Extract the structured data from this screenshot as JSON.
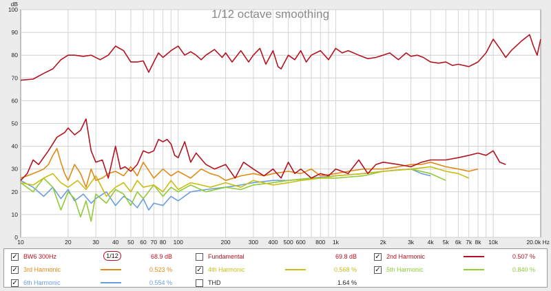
{
  "chart_data": {
    "type": "line",
    "title": "1/12 octave smoothing",
    "ylabel": "dB",
    "xscale": "log",
    "xlim": [
      10,
      20000
    ],
    "ylim": [
      0,
      100
    ],
    "yticks": [
      0,
      10,
      20,
      30,
      40,
      50,
      60,
      70,
      80,
      90,
      100
    ],
    "xticks": [
      {
        "v": 10,
        "label": "10"
      },
      {
        "v": 20,
        "label": "20"
      },
      {
        "v": 30,
        "label": "30"
      },
      {
        "v": 40,
        "label": "40"
      },
      {
        "v": 50,
        "label": "50"
      },
      {
        "v": 60,
        "label": "60"
      },
      {
        "v": 70,
        "label": "70"
      },
      {
        "v": 80,
        "label": "80"
      },
      {
        "v": 100,
        "label": "100"
      },
      {
        "v": 200,
        "label": "200"
      },
      {
        "v": 300,
        "label": "300"
      },
      {
        "v": 400,
        "label": "400"
      },
      {
        "v": 500,
        "label": "500"
      },
      {
        "v": 600,
        "label": "600"
      },
      {
        "v": 800,
        "label": "800"
      },
      {
        "v": 1000,
        "label": "1k"
      },
      {
        "v": 2000,
        "label": "2k"
      },
      {
        "v": 3000,
        "label": "3k"
      },
      {
        "v": 4000,
        "label": "4k"
      },
      {
        "v": 5000,
        "label": "5k"
      },
      {
        "v": 6000,
        "label": "6k"
      },
      {
        "v": 7000,
        "label": "7k"
      },
      {
        "v": 8000,
        "label": "8k"
      },
      {
        "v": 10000,
        "label": "10k"
      },
      {
        "v": 20000,
        "label": "20.0k Hz"
      }
    ],
    "grid": true,
    "series": [
      {
        "name": "BW6 300Hz",
        "color": "#b3121f",
        "x": [
          10,
          12,
          14,
          16,
          18,
          20,
          22,
          25,
          28,
          32,
          36,
          40,
          45,
          50,
          55,
          60,
          65,
          70,
          75,
          80,
          90,
          100,
          110,
          120,
          130,
          140,
          150,
          170,
          190,
          200,
          220,
          250,
          280,
          300,
          330,
          360,
          400,
          430,
          450,
          500,
          550,
          600,
          650,
          700,
          800,
          900,
          1000,
          1100,
          1200,
          1400,
          1600,
          1800,
          2000,
          2200,
          2500,
          2800,
          3000,
          3300,
          3600,
          4000,
          4500,
          5000,
          5500,
          6000,
          7000,
          8000,
          9000,
          10000,
          11000,
          12000,
          13000,
          15000,
          17000,
          18000,
          19000,
          20000
        ],
        "y": [
          69,
          69.5,
          72,
          74,
          78,
          80,
          80,
          79.5,
          80,
          78,
          80,
          84,
          82,
          77,
          77,
          77.5,
          72.5,
          77,
          81,
          79,
          82,
          84,
          80,
          81.5,
          80,
          78,
          80,
          82.5,
          79,
          81,
          77,
          82,
          77,
          80,
          83,
          76,
          82,
          75,
          74,
          80,
          78,
          82,
          77,
          80,
          82,
          78,
          83,
          81,
          82,
          80,
          78.5,
          79,
          80,
          81,
          78,
          81,
          79.5,
          80,
          79,
          77,
          76.5,
          77,
          75.5,
          76,
          75,
          77,
          81,
          87,
          83,
          79,
          82,
          86,
          89,
          84,
          80,
          87
        ]
      },
      {
        "name": "2nd Harmonic",
        "color": "#b3121f",
        "x": [
          10,
          11,
          12,
          13,
          15,
          17,
          19,
          20,
          22,
          24,
          26,
          28,
          30,
          33,
          36,
          40,
          43,
          46,
          50,
          55,
          60,
          65,
          70,
          75,
          80,
          85,
          90,
          95,
          100,
          110,
          120,
          130,
          150,
          170,
          200,
          230,
          260,
          300,
          350,
          400,
          450,
          500,
          550,
          600,
          700,
          800,
          900,
          1000,
          1200,
          1400,
          1600,
          1800,
          2000,
          2500,
          3000,
          3500,
          4000,
          5000,
          6000,
          7000,
          8000,
          9000,
          10000,
          11000,
          12000
        ],
        "y": [
          25,
          28,
          34,
          32,
          38,
          44,
          46,
          48,
          45,
          47,
          52,
          38,
          33,
          34,
          26,
          40,
          30,
          31,
          29,
          32,
          38,
          37,
          38,
          43,
          42,
          43,
          41,
          36,
          35,
          42,
          33,
          37,
          32,
          30,
          32,
          26,
          33,
          30,
          27,
          30,
          26,
          33,
          28,
          30,
          26,
          28,
          27,
          30,
          28,
          34,
          28,
          32,
          33,
          32,
          31,
          33,
          34,
          34,
          35,
          36,
          37,
          36,
          38,
          33,
          32
        ]
      },
      {
        "name": "3rd Harmonic",
        "color": "#e08a14",
        "x": [
          10,
          11,
          12,
          13,
          14,
          15,
          16,
          17,
          18,
          19,
          20,
          22,
          24,
          26,
          28,
          30,
          33,
          36,
          40,
          45,
          50,
          55,
          60,
          70,
          80,
          90,
          100,
          120,
          140,
          160,
          180,
          200,
          250,
          300,
          350,
          400,
          500,
          600,
          700,
          800,
          1000,
          1200,
          1500,
          2000,
          2500,
          3000,
          3500,
          4000,
          5000,
          6000,
          7000,
          8000
        ],
        "y": [
          26,
          27,
          28,
          29,
          30,
          32,
          36,
          39,
          33,
          28,
          25,
          32,
          28,
          22,
          30,
          25,
          26,
          28,
          29,
          27,
          31,
          27,
          33,
          26,
          30,
          27,
          29,
          26,
          30,
          28,
          27,
          25,
          27,
          28,
          27,
          28,
          29,
          28,
          30,
          27,
          28,
          29,
          30,
          30,
          31,
          32,
          32,
          33,
          31,
          30,
          29,
          30
        ]
      },
      {
        "name": "4th Harmonic",
        "color": "#c9bd12",
        "x": [
          10,
          12,
          14,
          16,
          18,
          20,
          23,
          26,
          30,
          35,
          40,
          45,
          50,
          55,
          60,
          70,
          80,
          90,
          100,
          120,
          140,
          160,
          200,
          250,
          300,
          400,
          500,
          600,
          800,
          1000,
          1500,
          2000,
          3000,
          4000,
          5000,
          6000,
          7000
        ],
        "y": [
          24,
          23,
          26,
          28,
          24,
          22,
          25,
          21,
          27,
          18,
          22,
          24,
          20,
          25,
          22,
          23,
          20,
          25,
          21,
          24,
          23,
          22,
          24,
          22,
          25,
          23,
          24,
          25,
          26,
          27,
          28,
          29,
          30,
          31,
          29,
          28,
          26
        ]
      },
      {
        "name": "5th Harmonic",
        "color": "#8fcc34",
        "x": [
          10,
          12,
          14,
          16,
          18,
          20,
          22,
          24,
          26,
          28,
          30,
          35,
          40,
          45,
          50,
          55,
          60,
          70,
          80,
          90,
          100,
          120,
          150,
          200,
          250,
          300,
          400,
          500,
          700,
          1000,
          1500,
          2000,
          3000,
          4000,
          5000
        ],
        "y": [
          24,
          20,
          26,
          22,
          12,
          20,
          17,
          9,
          16,
          7,
          19,
          15,
          21,
          19,
          14,
          20,
          17,
          23,
          18,
          22,
          20,
          23,
          20,
          22,
          21,
          23,
          24,
          25,
          26,
          26,
          27,
          29,
          30,
          28,
          25
        ]
      },
      {
        "name": "6th Harmonic",
        "color": "#6a9de0",
        "x": [
          10,
          12,
          14,
          16,
          18,
          20,
          22,
          25,
          28,
          30,
          35,
          40,
          45,
          50,
          55,
          60,
          65,
          70,
          80,
          90,
          100,
          120,
          150,
          200,
          250,
          300,
          400,
          500,
          700,
          1000,
          1500,
          2000,
          3000,
          3500,
          4000
        ],
        "y": [
          25,
          22,
          18,
          22,
          17,
          21,
          16,
          19,
          15,
          17,
          20,
          14,
          18,
          16,
          13,
          17,
          12,
          15,
          14,
          18,
          16,
          20,
          21,
          22,
          23,
          24,
          25,
          25,
          26,
          27,
          28,
          29,
          30,
          28,
          27
        ]
      }
    ]
  },
  "legend": {
    "smoothing_label": "1/12",
    "items": [
      {
        "label": "BW6 300Hz",
        "value": "68.9 dB",
        "checked": true,
        "color": "#b3121f",
        "text_color": "#b3121f",
        "line": false
      },
      {
        "label": "Fundamental",
        "value": "69.8 dB",
        "checked": false,
        "color": "",
        "text_color": "#b3121f",
        "line": false
      },
      {
        "label": "2nd Harmonic",
        "value": "0.507 %",
        "checked": true,
        "color": "#b3121f",
        "text_color": "#b3121f",
        "line": true
      },
      {
        "label": "3rd Harmonic",
        "value": "0.523 %",
        "checked": true,
        "color": "#e08a14",
        "text_color": "#e08a14",
        "line": true
      },
      {
        "label": "4th Harmonic",
        "value": "0.568 %",
        "checked": true,
        "color": "#c9bd12",
        "text_color": "#c9bd12",
        "line": true
      },
      {
        "label": "5th Harmonic",
        "value": "0.840 %",
        "checked": true,
        "color": "#8fcc34",
        "text_color": "#8fcc34",
        "line": true
      },
      {
        "label": "6th Harmonic",
        "value": "0.554 %",
        "checked": true,
        "color": "#6a9de0",
        "text_color": "#6a9de0",
        "line": true
      },
      {
        "label": "THD",
        "value": "1.64 %",
        "checked": false,
        "color": "",
        "text_color": "#222222",
        "line": false
      }
    ]
  }
}
